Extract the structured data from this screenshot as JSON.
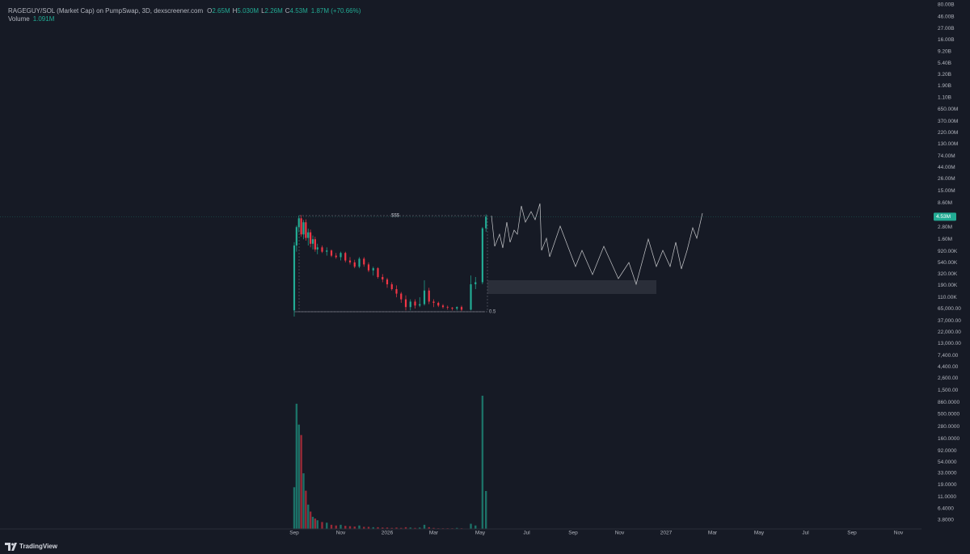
{
  "chart_data": {
    "type": "candlestick",
    "symbol": "RAGEGUY/SOL (Market Cap) on PumpSwap, 3D, dexscreener.com",
    "ohlc_legend": [
      {
        "key": "O",
        "value": "2.65M"
      },
      {
        "key": "H",
        "value": "5.030M"
      },
      {
        "key": "L",
        "value": "2.26M"
      },
      {
        "key": "C",
        "value": "4.53M"
      }
    ],
    "change": "1.87M (+70.66%)",
    "volume_legend": {
      "key": "Volume",
      "value": "1.091M"
    },
    "last_price": {
      "value": 4530000,
      "label": "4.53M"
    },
    "annotations": {
      "box_label": "$$$",
      "level_label": "0.5"
    },
    "brand": "TradingView",
    "up_color": "#22ab94",
    "down_color": "#f23645",
    "log_y": true,
    "grid": false,
    "x": [
      0,
      0.1,
      0.2,
      0.3,
      0.4,
      0.5,
      0.6,
      0.7,
      0.8,
      0.9,
      1.0,
      1.2,
      1.4,
      1.6,
      1.8,
      2.0,
      2.2,
      2.4,
      2.6,
      2.8,
      3.0,
      3.2,
      3.4,
      3.6,
      3.8,
      4.0,
      4.2,
      4.4,
      4.6,
      4.8,
      5.0,
      5.2,
      5.4,
      5.6,
      5.8,
      6.0,
      6.2,
      6.4,
      6.6,
      6.8,
      7.0,
      7.2,
      7.6,
      7.8,
      8.1,
      8.25
    ],
    "open": [
      60000,
      1200000,
      2800000,
      4200000,
      2000000,
      3500000,
      1700000,
      2200000,
      1300000,
      1600000,
      1000000,
      1100000,
      900000,
      950000,
      750000,
      700000,
      850000,
      600000,
      550000,
      450000,
      650000,
      500000,
      380000,
      420000,
      280000,
      250000,
      200000,
      160000,
      130000,
      100000,
      70000,
      90000,
      75000,
      80000,
      150000,
      90000,
      85000,
      75000,
      70000,
      68000,
      65000,
      70000,
      62000,
      200000,
      220000,
      2650000
    ],
    "high": [
      1400000,
      3000000,
      4800000,
      4900000,
      3900000,
      4000000,
      2600000,
      2500000,
      1900000,
      1800000,
      1300000,
      1200000,
      1100000,
      1000000,
      850000,
      900000,
      900000,
      700000,
      620000,
      700000,
      700000,
      550000,
      450000,
      440000,
      320000,
      270000,
      220000,
      190000,
      140000,
      120000,
      100000,
      100000,
      110000,
      240000,
      170000,
      100000,
      90000,
      80000,
      75000,
      70000,
      72000,
      75000,
      300000,
      280000,
      2800000,
      5030000
    ],
    "low": [
      45000,
      900000,
      2200000,
      1800000,
      1600000,
      1500000,
      1200000,
      1100000,
      1000000,
      900000,
      800000,
      850000,
      750000,
      700000,
      650000,
      600000,
      550000,
      500000,
      420000,
      420000,
      450000,
      350000,
      300000,
      260000,
      220000,
      170000,
      150000,
      110000,
      85000,
      60000,
      60000,
      65000,
      70000,
      75000,
      80000,
      70000,
      70000,
      65000,
      62000,
      60000,
      60000,
      58000,
      60000,
      160000,
      200000,
      2260000
    ],
    "close": [
      1200000,
      2800000,
      4200000,
      2000000,
      3500000,
      1700000,
      2200000,
      1300000,
      1600000,
      1000000,
      1100000,
      900000,
      950000,
      750000,
      700000,
      850000,
      600000,
      550000,
      450000,
      650000,
      500000,
      380000,
      420000,
      280000,
      250000,
      200000,
      160000,
      130000,
      100000,
      70000,
      90000,
      75000,
      80000,
      150000,
      90000,
      85000,
      75000,
      70000,
      68000,
      65000,
      70000,
      62000,
      200000,
      220000,
      2650000,
      4530000
    ],
    "volume": [
      1200000,
      3600000,
      3000000,
      2700000,
      1600000,
      1100000,
      700000,
      500000,
      350000,
      300000,
      250000,
      200000,
      180000,
      120000,
      100000,
      120000,
      90000,
      80000,
      70000,
      100000,
      60000,
      60000,
      50000,
      50000,
      40000,
      40000,
      30000,
      40000,
      30000,
      50000,
      40000,
      30000,
      40000,
      120000,
      50000,
      30000,
      20000,
      20000,
      20000,
      20000,
      30000,
      20000,
      150000,
      100000,
      3830000,
      1091000
    ],
    "xlim": [
      -12.66,
      26.99
    ],
    "xticks": [
      {
        "value": 0,
        "label": "Sep"
      },
      {
        "value": 2,
        "label": "Nov"
      },
      {
        "value": 4,
        "label": "2026"
      },
      {
        "value": 6,
        "label": "Mar"
      },
      {
        "value": 8,
        "label": "May"
      },
      {
        "value": 10,
        "label": "Jul"
      },
      {
        "value": 12,
        "label": "Sep"
      },
      {
        "value": 14,
        "label": "Nov"
      },
      {
        "value": 16,
        "label": "2027"
      },
      {
        "value": 18,
        "label": "Mar"
      },
      {
        "value": 20,
        "label": "May"
      },
      {
        "value": 22,
        "label": "Jul"
      },
      {
        "value": 24,
        "label": "Sep"
      },
      {
        "value": 26,
        "label": "Nov"
      }
    ],
    "ylim": [
      3,
      100000000000
    ],
    "yticks": [
      {
        "value": 80000000000,
        "label": "80.00B"
      },
      {
        "value": 46000000000,
        "label": "46.00B"
      },
      {
        "value": 27000000000,
        "label": "27.00B"
      },
      {
        "value": 16000000000,
        "label": "16.00B"
      },
      {
        "value": 9200000000,
        "label": "9.20B"
      },
      {
        "value": 5400000000,
        "label": "5.40B"
      },
      {
        "value": 3200000000,
        "label": "3.20B"
      },
      {
        "value": 1900000000,
        "label": "1.90B"
      },
      {
        "value": 1100000000,
        "label": "1.10B"
      },
      {
        "value": 650000000,
        "label": "650.00M"
      },
      {
        "value": 370000000,
        "label": "370.00M"
      },
      {
        "value": 220000000,
        "label": "220.00M"
      },
      {
        "value": 130000000,
        "label": "130.00M"
      },
      {
        "value": 74000000,
        "label": "74.00M"
      },
      {
        "value": 44000000,
        "label": "44.00M"
      },
      {
        "value": 26000000,
        "label": "26.00M"
      },
      {
        "value": 15000000,
        "label": "15.00M"
      },
      {
        "value": 8600000,
        "label": "8.60M"
      },
      {
        "value": 2800000,
        "label": "2.80M"
      },
      {
        "value": 1600000,
        "label": "1.60M"
      },
      {
        "value": 920000,
        "label": "920.00K"
      },
      {
        "value": 540000,
        "label": "540.00K"
      },
      {
        "value": 320000,
        "label": "320.00K"
      },
      {
        "value": 190000,
        "label": "190.00K"
      },
      {
        "value": 110000,
        "label": "110.00K"
      },
      {
        "value": 65000,
        "label": "65,000.00"
      },
      {
        "value": 37000,
        "label": "37,000.00"
      },
      {
        "value": 22000,
        "label": "22,000.00"
      },
      {
        "value": 13000,
        "label": "13,000.00"
      },
      {
        "value": 7400,
        "label": "7,400.00"
      },
      {
        "value": 4400,
        "label": "4,400.00"
      },
      {
        "value": 2600,
        "label": "2,600.00"
      },
      {
        "value": 1500,
        "label": "1,500.00"
      },
      {
        "value": 860,
        "label": "860.0000"
      },
      {
        "value": 500,
        "label": "500.0000"
      },
      {
        "value": 280,
        "label": "280.0000"
      },
      {
        "value": 160,
        "label": "160.0000"
      },
      {
        "value": 92,
        "label": "92.0000"
      },
      {
        "value": 54,
        "label": "54.0000"
      },
      {
        "value": 33,
        "label": "33.0000"
      },
      {
        "value": 19,
        "label": "19.0000"
      },
      {
        "value": 11,
        "label": "11.0000"
      },
      {
        "value": 6.4,
        "label": "6.4000"
      },
      {
        "value": 3.8,
        "label": "3.8000"
      }
    ]
  }
}
